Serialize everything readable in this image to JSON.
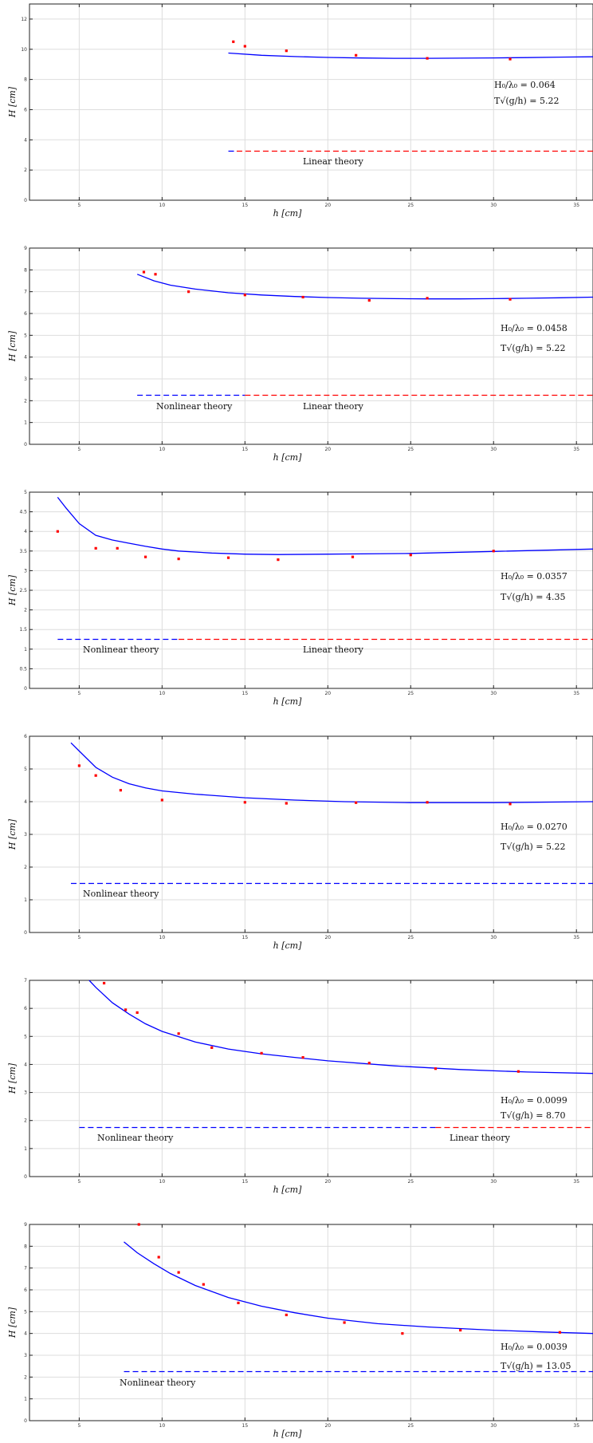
{
  "chart_data": [
    {
      "type": "line",
      "xlabel": "h   [cm]",
      "ylabel": "H   [cm]",
      "xlim": [
        2,
        36
      ],
      "ylim": [
        0,
        13
      ],
      "xticks": [
        5,
        10,
        15,
        20,
        25,
        30,
        35
      ],
      "yticks": [
        0,
        2,
        4,
        6,
        8,
        10,
        12
      ],
      "annotations": [
        "H₀/λ₀ = 0.064",
        "T√(g/h) = 5.22"
      ],
      "measured": {
        "color": "#ff0000",
        "x": [
          14.3,
          15.0,
          17.5,
          21.7,
          26.0,
          31.0
        ],
        "y": [
          10.5,
          10.2,
          9.9,
          9.6,
          9.4,
          9.35
        ]
      },
      "curve": {
        "color": "#0000ff",
        "x": [
          14.0,
          16,
          18,
          20,
          22,
          24,
          26,
          28,
          30,
          32,
          34,
          36
        ],
        "y": [
          9.75,
          9.6,
          9.52,
          9.46,
          9.42,
          9.4,
          9.4,
          9.41,
          9.43,
          9.45,
          9.48,
          9.5
        ]
      },
      "theory_lines": [
        {
          "color": "#0000ff",
          "y": 3.25,
          "x": [
            14.0,
            14.5
          ],
          "label": ""
        },
        {
          "color": "#ff0000",
          "y": 3.25,
          "x": [
            14.5,
            36.0
          ],
          "label": "Linear theory"
        }
      ]
    },
    {
      "type": "line",
      "xlabel": "h   [cm]",
      "ylabel": "H   [cm]",
      "xlim": [
        2,
        36
      ],
      "ylim": [
        0,
        9
      ],
      "xticks": [
        5,
        10,
        15,
        20,
        25,
        30,
        35
      ],
      "yticks": [
        0,
        1,
        2,
        3,
        4,
        5,
        6,
        7,
        8,
        9
      ],
      "annotations": [
        "H₀/λ₀ = 0.0458",
        "T√(g/h) = 5.22"
      ],
      "measured": {
        "color": "#ff0000",
        "x": [
          8.9,
          9.6,
          11.6,
          15.0,
          18.5,
          22.5,
          26.0,
          31.0
        ],
        "y": [
          7.9,
          7.8,
          7.0,
          6.85,
          6.75,
          6.6,
          6.7,
          6.65
        ]
      },
      "curve": {
        "color": "#0000ff",
        "x": [
          8.5,
          9.5,
          10.5,
          12,
          14,
          16,
          18,
          20,
          22,
          24,
          26,
          28,
          30,
          32,
          34,
          36
        ],
        "y": [
          7.8,
          7.5,
          7.3,
          7.12,
          6.95,
          6.85,
          6.78,
          6.73,
          6.7,
          6.68,
          6.67,
          6.67,
          6.68,
          6.7,
          6.72,
          6.75
        ]
      },
      "theory_lines": [
        {
          "color": "#0000ff",
          "y": 2.25,
          "x": [
            8.5,
            15.0
          ],
          "label": "Nonlinear theory"
        },
        {
          "color": "#ff0000",
          "y": 2.25,
          "x": [
            15.0,
            36.0
          ],
          "label": "Linear theory"
        }
      ]
    },
    {
      "type": "line",
      "xlabel": "h   [cm]",
      "ylabel": "H   [cm]",
      "xlim": [
        2,
        36
      ],
      "ylim": [
        0,
        5
      ],
      "xticks": [
        5,
        10,
        15,
        20,
        25,
        30,
        35
      ],
      "yticks": [
        0,
        0.5,
        1,
        1.5,
        2,
        2.5,
        3,
        3.5,
        4,
        4.5,
        5
      ],
      "annotations": [
        "H₀/λ₀ = 0.0357",
        "T√(g/h) = 4.35"
      ],
      "measured": {
        "color": "#ff0000",
        "x": [
          3.7,
          6.0,
          7.3,
          9.0,
          11.0,
          14.0,
          17.0,
          21.5,
          25.0,
          30.0
        ],
        "y": [
          4.0,
          3.57,
          3.57,
          3.35,
          3.3,
          3.33,
          3.28,
          3.35,
          3.4,
          3.5
        ]
      },
      "curve": {
        "color": "#0000ff",
        "x": [
          3.7,
          4.2,
          5.0,
          6.0,
          7.0,
          8.0,
          9.0,
          10.0,
          11.0,
          13.0,
          15.0,
          17.0,
          20.0,
          25.0,
          30.0,
          36.0
        ],
        "y": [
          4.87,
          4.6,
          4.2,
          3.9,
          3.78,
          3.7,
          3.62,
          3.55,
          3.5,
          3.45,
          3.42,
          3.41,
          3.42,
          3.44,
          3.49,
          3.55
        ]
      },
      "theory_lines": [
        {
          "color": "#0000ff",
          "y": 1.25,
          "x": [
            3.7,
            11.0
          ],
          "label": "Nonlinear theory"
        },
        {
          "color": "#ff0000",
          "y": 1.25,
          "x": [
            11.0,
            36.0
          ],
          "label": "Linear theory"
        }
      ]
    },
    {
      "type": "line",
      "xlabel": "h   [cm]",
      "ylabel": "H   [cm]",
      "xlim": [
        2,
        36
      ],
      "ylim": [
        0,
        6
      ],
      "xticks": [
        5,
        10,
        15,
        20,
        25,
        30,
        35
      ],
      "yticks": [
        0,
        1,
        2,
        3,
        4,
        5,
        6
      ],
      "annotations": [
        "H₀/λ₀ = 0.0270",
        "T√(g/h) = 5.22"
      ],
      "measured": {
        "color": "#ff0000",
        "x": [
          5.0,
          6.0,
          7.5,
          10.0,
          15.0,
          17.5,
          21.7,
          26.0,
          31.0
        ],
        "y": [
          5.1,
          4.8,
          4.35,
          4.05,
          3.98,
          3.95,
          3.97,
          3.98,
          3.93
        ]
      },
      "curve": {
        "color": "#0000ff",
        "x": [
          4.5,
          5.0,
          6.0,
          7.0,
          8.0,
          9.0,
          10.0,
          12.0,
          15.0,
          18.0,
          21.0,
          25.0,
          30.0,
          36.0
        ],
        "y": [
          5.8,
          5.55,
          5.05,
          4.75,
          4.55,
          4.42,
          4.33,
          4.23,
          4.12,
          4.05,
          4.0,
          3.97,
          3.97,
          4.0
        ]
      },
      "theory_lines": [
        {
          "color": "#0000ff",
          "y": 1.5,
          "x": [
            4.5,
            36.0
          ],
          "label": "Nonlinear theory"
        }
      ]
    },
    {
      "type": "line",
      "xlabel": "h [cm]",
      "ylabel": "H [cm]",
      "xlim": [
        2,
        36
      ],
      "ylim": [
        0,
        7
      ],
      "xticks": [
        5,
        10,
        15,
        20,
        25,
        30,
        35
      ],
      "yticks": [
        0,
        1,
        2,
        3,
        4,
        5,
        6,
        7
      ],
      "annotations": [
        "H₀/λ₀ = 0.0099",
        "T√(g/h) = 8.70"
      ],
      "measured": {
        "color": "#ff0000",
        "x": [
          6.5,
          7.8,
          8.5,
          11.0,
          13.0,
          16.0,
          18.5,
          22.5,
          26.5,
          31.5
        ],
        "y": [
          6.9,
          5.95,
          5.85,
          5.1,
          4.6,
          4.4,
          4.25,
          4.05,
          3.85,
          3.75
        ]
      },
      "curve": {
        "color": "#0000ff",
        "x": [
          5.6,
          6.0,
          7.0,
          8.0,
          9.0,
          10.0,
          12.0,
          14.0,
          16.0,
          18.0,
          20.0,
          24.0,
          28.0,
          32.0,
          36.0
        ],
        "y": [
          7.0,
          6.75,
          6.2,
          5.8,
          5.45,
          5.18,
          4.8,
          4.55,
          4.38,
          4.25,
          4.13,
          3.95,
          3.82,
          3.73,
          3.68
        ]
      },
      "theory_lines": [
        {
          "color": "#0000ff",
          "y": 1.75,
          "x": [
            5.0,
            26.5
          ],
          "label": "Nonlinear theory"
        },
        {
          "color": "#ff0000",
          "y": 1.75,
          "x": [
            26.5,
            36.0
          ],
          "label": "Linear theory"
        }
      ]
    },
    {
      "type": "line",
      "xlabel": "h [cm]",
      "ylabel": "H [cm]",
      "xlim": [
        2,
        36
      ],
      "ylim": [
        0,
        9
      ],
      "xticks": [
        5,
        10,
        15,
        20,
        25,
        30,
        35
      ],
      "yticks": [
        0,
        1,
        2,
        3,
        4,
        5,
        6,
        7,
        8,
        9
      ],
      "annotations": [
        "H₀/λ₀ = 0.0039",
        "T√(g/h) = 13.05"
      ],
      "measured": {
        "color": "#ff0000",
        "x": [
          8.6,
          9.8,
          11.0,
          12.5,
          14.6,
          17.5,
          21.0,
          24.5,
          28.0,
          34.0
        ],
        "y": [
          9.0,
          7.5,
          6.8,
          6.25,
          5.4,
          4.85,
          4.5,
          4.0,
          4.15,
          4.05
        ]
      },
      "curve": {
        "color": "#0000ff",
        "x": [
          7.7,
          8.5,
          9.5,
          10.5,
          12.0,
          14.0,
          16.0,
          18.0,
          20.0,
          23.0,
          26.0,
          30.0,
          33.0,
          36.0
        ],
        "y": [
          8.2,
          7.7,
          7.2,
          6.75,
          6.2,
          5.65,
          5.25,
          4.95,
          4.7,
          4.45,
          4.3,
          4.15,
          4.07,
          4.0
        ]
      },
      "theory_lines": [
        {
          "color": "#0000ff",
          "y": 2.25,
          "x": [
            7.7,
            36.0
          ],
          "label": "Nonlinear theory"
        }
      ]
    }
  ]
}
